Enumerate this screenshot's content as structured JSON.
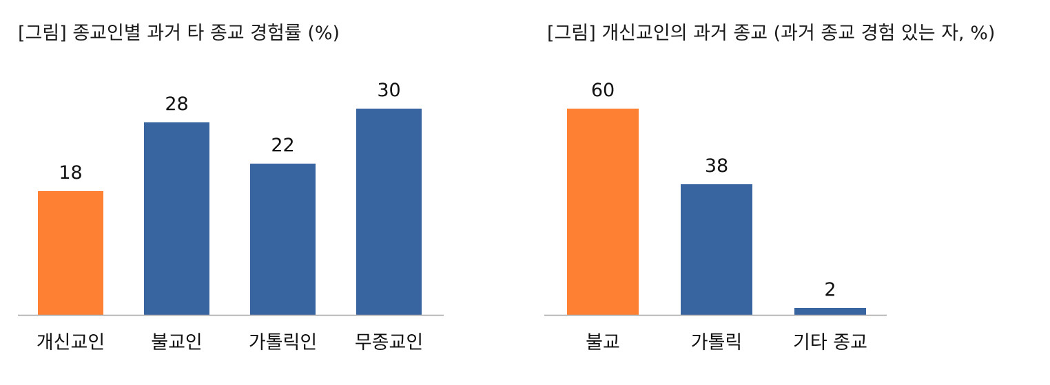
{
  "colors": {
    "highlight": "#FE8133",
    "primary": "#3864A0",
    "axis": "#A6A6A6",
    "text": "#111111"
  },
  "chart_data": [
    {
      "type": "bar",
      "title": "[그림] 종교인별 과거 타 종교 경험률 (%)",
      "categories": [
        "개신교인",
        "불교인",
        "가톨릭인",
        "무종교인"
      ],
      "values": [
        18,
        28,
        22,
        30
      ],
      "highlight_index": 0,
      "ylim": [
        0,
        35
      ],
      "grid": false,
      "xlabel": "",
      "ylabel": ""
    },
    {
      "type": "bar",
      "title": "[그림] 개신교인의 과거 종교 (과거 종교 경험 있는 자, %)",
      "categories": [
        "불교",
        "가톨릭",
        "기타 종교"
      ],
      "values": [
        60,
        38,
        2
      ],
      "highlight_index": 0,
      "ylim": [
        0,
        70
      ],
      "grid": false,
      "xlabel": "",
      "ylabel": ""
    }
  ]
}
